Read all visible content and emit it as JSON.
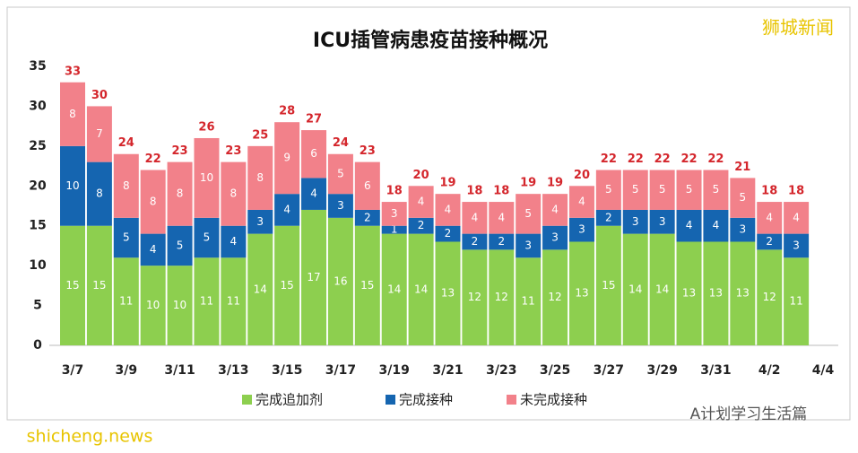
{
  "chart_data": {
    "type": "stacked-bar",
    "title": "ICU插管病患疫苗接种概况",
    "categories": [
      "3/7",
      null,
      "3/9",
      null,
      "3/11",
      null,
      "3/13",
      null,
      "3/15",
      null,
      "3/17",
      null,
      "3/19",
      null,
      "3/21",
      null,
      "3/23",
      null,
      "3/25",
      null,
      "3/27",
      null,
      "3/29",
      null,
      "3/31",
      null,
      "4/2",
      null,
      "4/4"
    ],
    "series": [
      {
        "name": "完成追加剂",
        "color": "#8dcf4f",
        "values": [
          15,
          15,
          11,
          10,
          10,
          11,
          11,
          14,
          15,
          17,
          16,
          15,
          14,
          14,
          13,
          12,
          12,
          11,
          12,
          13,
          15,
          14,
          14,
          13,
          13,
          13,
          12,
          11,
          null
        ]
      },
      {
        "name": "完成接种",
        "color": "#1565b0",
        "values": [
          10,
          8,
          5,
          4,
          5,
          5,
          4,
          3,
          4,
          4,
          3,
          2,
          1,
          2,
          2,
          2,
          2,
          3,
          3,
          3,
          2,
          3,
          3,
          4,
          4,
          3,
          2,
          3,
          null
        ]
      },
      {
        "name": "未完成接种",
        "color": "#f2818a",
        "values": [
          8,
          7,
          8,
          8,
          8,
          10,
          8,
          8,
          9,
          6,
          5,
          6,
          3,
          4,
          4,
          4,
          4,
          5,
          4,
          4,
          5,
          5,
          5,
          5,
          5,
          5,
          4,
          4,
          null
        ]
      }
    ],
    "totals": [
      33,
      30,
      24,
      22,
      23,
      26,
      23,
      25,
      28,
      27,
      24,
      23,
      18,
      20,
      19,
      18,
      18,
      19,
      19,
      20,
      22,
      22,
      22,
      22,
      22,
      21,
      18,
      18,
      null
    ],
    "ylim": [
      0,
      35
    ],
    "yticks": [
      0,
      5,
      10,
      15,
      20,
      25,
      30,
      35
    ],
    "grid": false,
    "watermarks": [
      "狮城新闻",
      "A计划学习生活篇",
      "shicheng.news"
    ]
  }
}
